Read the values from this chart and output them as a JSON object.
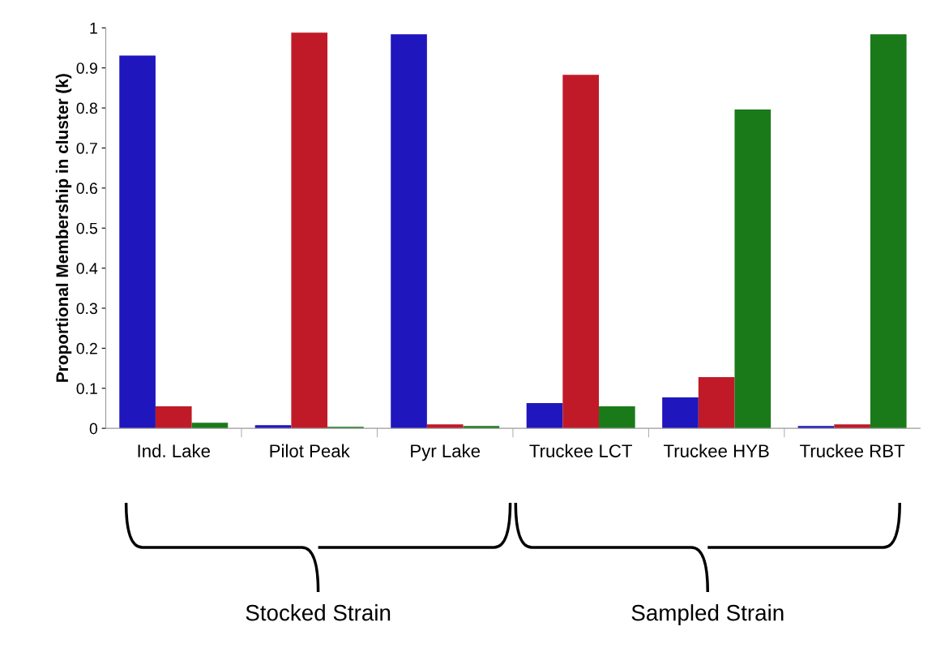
{
  "chart_data": {
    "type": "bar",
    "ylabel": "Proportional Membership in cluster (k)",
    "categories": [
      "Ind. Lake",
      "Pilot Peak",
      "Pyr Lake",
      "Truckee LCT",
      "Truckee HYB",
      "Truckee RBT"
    ],
    "series": [
      {
        "color": "#1f16bd",
        "values": [
          0.931,
          0.008,
          0.984,
          0.063,
          0.077,
          0.006
        ]
      },
      {
        "color": "#c01a28",
        "values": [
          0.055,
          0.988,
          0.01,
          0.883,
          0.128,
          0.01
        ]
      },
      {
        "color": "#1a7a1a",
        "values": [
          0.014,
          0.004,
          0.006,
          0.055,
          0.796,
          0.984
        ]
      }
    ],
    "ylim": [
      0,
      1
    ],
    "yticks": [
      0,
      0.1,
      0.2,
      0.3,
      0.4,
      0.5,
      0.6,
      0.7,
      0.8,
      0.9,
      1
    ],
    "annotations": [
      "Stocked Strain",
      "Sampled Strain"
    ],
    "grid": false,
    "legend": false
  }
}
